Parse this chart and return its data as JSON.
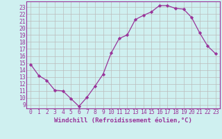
{
  "x": [
    0,
    1,
    2,
    3,
    4,
    5,
    6,
    7,
    8,
    9,
    10,
    11,
    12,
    13,
    14,
    15,
    16,
    17,
    18,
    19,
    20,
    21,
    22,
    23
  ],
  "y": [
    14.8,
    13.2,
    12.5,
    11.1,
    11.0,
    9.9,
    8.8,
    10.1,
    11.7,
    13.4,
    16.4,
    18.5,
    19.0,
    21.2,
    21.8,
    22.3,
    23.2,
    23.2,
    22.8,
    22.7,
    21.5,
    19.3,
    17.4,
    16.3
  ],
  "line_color": "#993399",
  "marker": "D",
  "marker_size": 2.2,
  "linewidth": 0.9,
  "bg_color": "#cff0f0",
  "grid_color": "#bbbbbb",
  "xlabel": "Windchill (Refroidissement éolien,°C)",
  "xlabel_fontsize": 6.5,
  "tick_fontsize": 5.8,
  "xlim": [
    -0.5,
    23.5
  ],
  "ylim": [
    8.5,
    23.8
  ],
  "yticks": [
    9,
    10,
    11,
    12,
    13,
    14,
    15,
    16,
    17,
    18,
    19,
    20,
    21,
    22,
    23
  ],
  "xticks": [
    0,
    1,
    2,
    3,
    4,
    5,
    6,
    7,
    8,
    9,
    10,
    11,
    12,
    13,
    14,
    15,
    16,
    17,
    18,
    19,
    20,
    21,
    22,
    23
  ]
}
